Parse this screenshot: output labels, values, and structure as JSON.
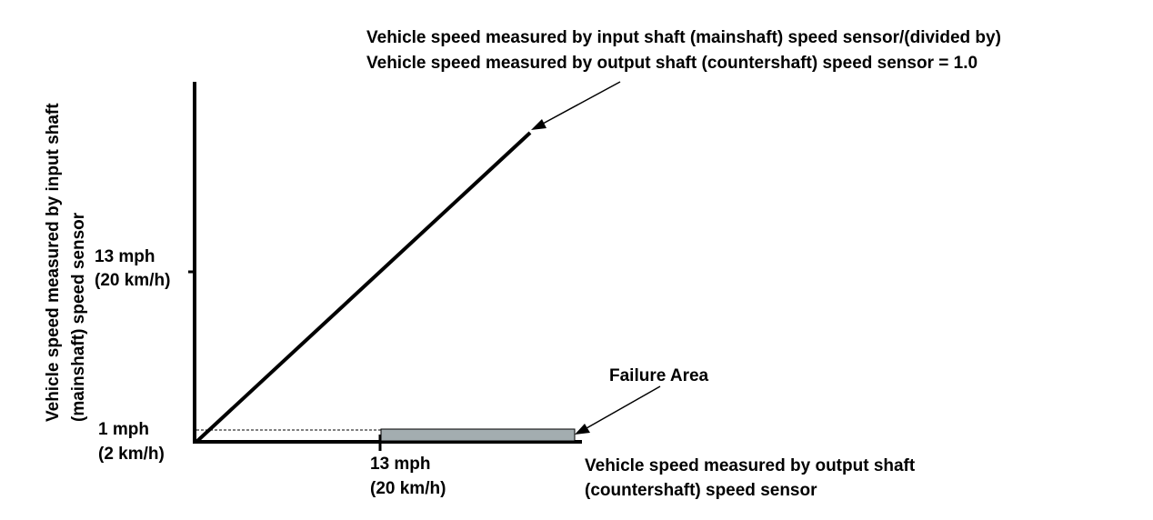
{
  "annotation_top": {
    "line1": "Vehicle speed measured by input shaft (mainshaft) speed sensor/(divided by)",
    "line2": "Vehicle speed measured by output shaft (countershaft) speed sensor = 1.0"
  },
  "y_axis": {
    "label_line1": "Vehicle speed measured by input shaft",
    "label_line2": "(mainshaft) speed sensor",
    "tick_high_line1": "13 mph",
    "tick_high_line2": "(20 km/h)",
    "tick_low_line1": "1 mph",
    "tick_low_line2": "(2 km/h)"
  },
  "x_axis": {
    "label_line1": "Vehicle speed measured by output shaft",
    "label_line2": "(countershaft) speed sensor",
    "tick_line1": "13 mph",
    "tick_line2": "(20 km/h)"
  },
  "failure_area": {
    "label": "Failure Area",
    "fill_color": "#a3adb0"
  },
  "colors": {
    "line": "#000000",
    "background": "#ffffff"
  }
}
